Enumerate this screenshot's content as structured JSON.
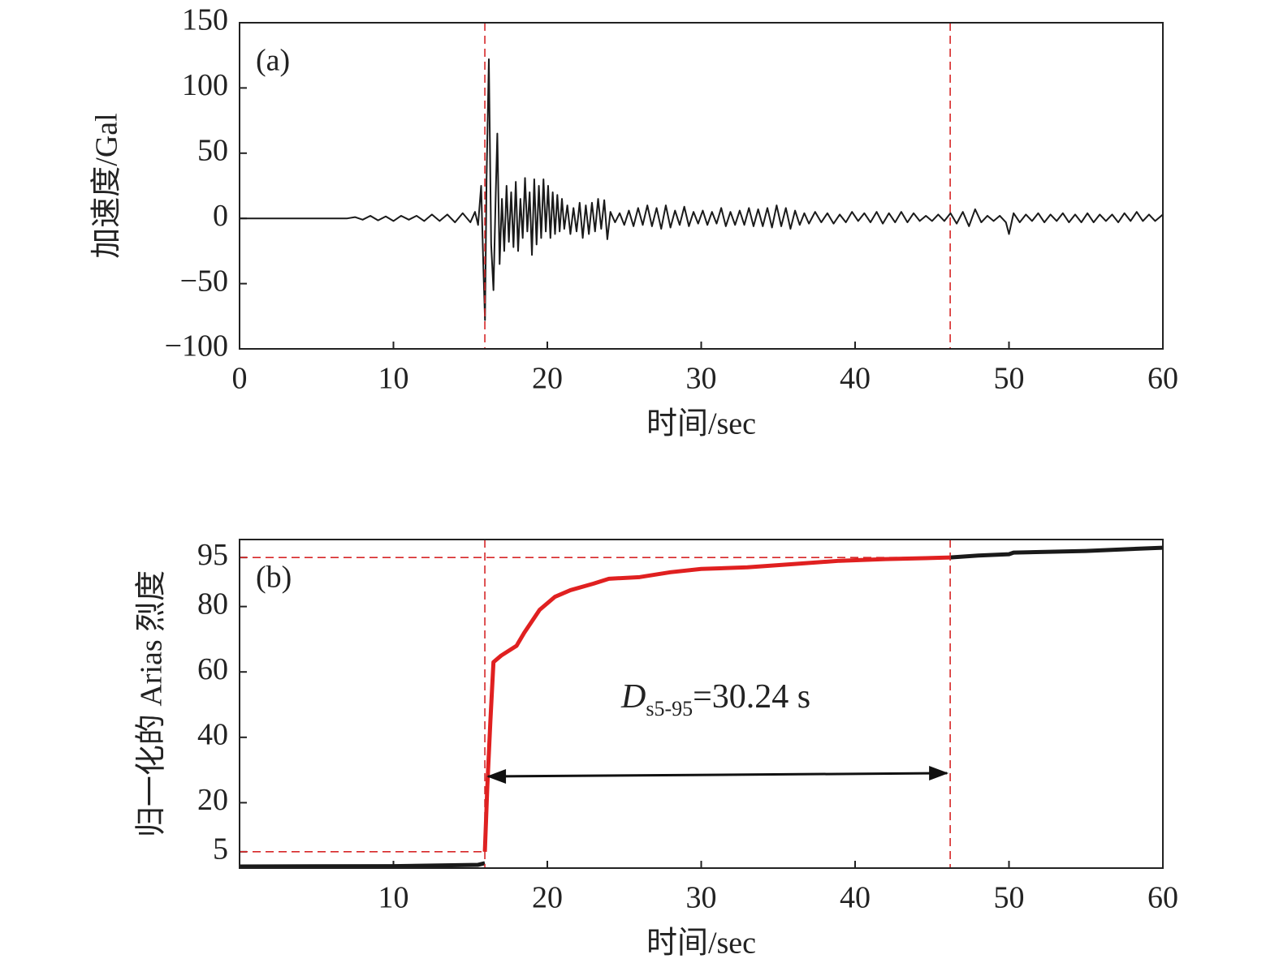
{
  "chart_data": [
    {
      "type": "line",
      "panel_label": "(a)",
      "xlabel": "时间/sec",
      "ylabel": "加速度/Gal",
      "xlim": [
        0,
        60
      ],
      "xticks": [
        0,
        10,
        20,
        30,
        40,
        50,
        60
      ],
      "ylim": [
        -100,
        150
      ],
      "yticks": [
        {
          "value": -100,
          "label": "−100"
        },
        {
          "value": -50,
          "label": "−50"
        },
        0,
        50,
        100,
        150
      ],
      "color": "#1a1a1a",
      "vline_color": "#d62728",
      "vlines": [
        15.94,
        46.18
      ],
      "x": [
        0,
        7,
        7.5,
        8,
        8.5,
        9,
        9.5,
        10,
        10.5,
        11,
        11.5,
        12,
        12.5,
        13,
        13.5,
        14,
        14.5,
        15,
        15.3,
        15.5,
        15.7,
        15.85,
        15.95,
        16.05,
        16.2,
        16.35,
        16.5,
        16.65,
        16.75,
        16.9,
        17.05,
        17.2,
        17.35,
        17.5,
        17.65,
        17.8,
        17.95,
        18.1,
        18.25,
        18.4,
        18.55,
        18.7,
        18.85,
        19.0,
        19.15,
        19.3,
        19.45,
        19.6,
        19.75,
        19.9,
        20.05,
        20.2,
        20.35,
        20.5,
        20.65,
        20.8,
        20.95,
        21.1,
        21.3,
        21.5,
        21.7,
        21.9,
        22.1,
        22.3,
        22.5,
        22.7,
        22.9,
        23.1,
        23.3,
        23.5,
        23.7,
        23.9,
        24.1,
        24.4,
        24.7,
        25.0,
        25.3,
        25.6,
        25.9,
        26.2,
        26.5,
        26.8,
        27.1,
        27.4,
        27.7,
        28.0,
        28.3,
        28.6,
        28.9,
        29.2,
        29.5,
        29.8,
        30.1,
        30.4,
        30.7,
        31.0,
        31.3,
        31.6,
        31.9,
        32.2,
        32.5,
        32.8,
        33.1,
        33.4,
        33.7,
        34.0,
        34.3,
        34.6,
        34.9,
        35.2,
        35.5,
        35.8,
        36.1,
        36.4,
        36.7,
        37.0,
        37.4,
        37.8,
        38.2,
        38.6,
        39.0,
        39.4,
        39.8,
        40.2,
        40.6,
        41.0,
        41.4,
        41.8,
        42.2,
        42.6,
        43.0,
        43.4,
        43.8,
        44.2,
        44.6,
        45.0,
        45.4,
        45.8,
        46.2,
        46.6,
        47.0,
        47.4,
        47.8,
        48.2,
        48.6,
        49.0,
        49.4,
        49.8,
        50.0,
        50.3,
        50.7,
        51.1,
        51.5,
        51.9,
        52.3,
        52.7,
        53.1,
        53.5,
        53.9,
        54.3,
        54.7,
        55.1,
        55.5,
        55.9,
        56.3,
        56.7,
        57.1,
        57.5,
        57.9,
        58.3,
        58.7,
        59.1,
        59.5,
        60.0
      ],
      "values": [
        0,
        0,
        1,
        -1,
        2,
        -1.5,
        1.5,
        -2,
        2,
        -1,
        2,
        -2,
        3,
        -2,
        3,
        -3,
        4,
        -3,
        5,
        -5,
        25,
        -40,
        -78,
        30,
        122,
        -20,
        -55,
        20,
        65,
        -35,
        15,
        -25,
        25,
        -18,
        20,
        -22,
        28,
        -25,
        15,
        -15,
        31,
        -10,
        20,
        -28,
        30,
        -20,
        25,
        -15,
        30,
        -10,
        25,
        -15,
        20,
        -12,
        18,
        -10,
        15,
        -8,
        10,
        -12,
        8,
        -10,
        12,
        -15,
        10,
        -12,
        12,
        -10,
        15,
        -8,
        14,
        -16,
        5,
        -3,
        4,
        -5,
        6,
        -6,
        8,
        -5,
        10,
        -6,
        8,
        -8,
        10,
        -7,
        6,
        -5,
        9,
        -6,
        5,
        -4,
        6,
        -5,
        5,
        -4,
        8,
        -6,
        5,
        -5,
        6,
        -5,
        8,
        -6,
        7,
        -6,
        8,
        -7,
        10,
        -6,
        8,
        -8,
        6,
        -5,
        4,
        -4,
        5,
        -3,
        4,
        -4,
        3,
        -3,
        5,
        -2,
        4,
        -3,
        5,
        -4,
        4,
        -3,
        5,
        -3,
        4,
        -2,
        2,
        -2,
        3,
        -2,
        4,
        -4,
        5,
        -6,
        7,
        -3,
        2,
        -2,
        2,
        -3,
        -12,
        4,
        -3,
        3,
        -2,
        4,
        -3,
        3,
        -2,
        4,
        -3,
        3,
        -3,
        4,
        -3,
        3,
        -2,
        3,
        -3,
        4,
        -2,
        5,
        -2,
        3,
        -2,
        3
      ]
    },
    {
      "type": "line",
      "panel_label": "(b)",
      "xlabel": "时间/sec",
      "ylabel": "归一化的 Arias 烈度",
      "xlim": [
        0,
        60
      ],
      "xticks": [
        10,
        20,
        30,
        40,
        50,
        60
      ],
      "ylim": [
        0,
        100.5
      ],
      "yticks": [
        5,
        20,
        40,
        60,
        80,
        95
      ],
      "vline_color": "#d62728",
      "vlines": [
        15.94,
        46.18
      ],
      "hlines": [
        5,
        95
      ],
      "annotation": {
        "text": "D",
        "sub": "s5-95",
        "rest": "=30.24 s"
      },
      "series": [
        {
          "color": "#1a1a1a",
          "x": [
            0,
            10,
            15.5,
            15.94
          ],
          "values": [
            0.5,
            0.6,
            1,
            1.5
          ]
        },
        {
          "color": "#e02020",
          "x": [
            15.94,
            16.1,
            16.3,
            16.5,
            17,
            18,
            18.5,
            19.5,
            20.5,
            21.5,
            23,
            24,
            26,
            28,
            30,
            33,
            36,
            39,
            42,
            46.18
          ],
          "values": [
            5,
            25,
            45,
            63,
            65,
            68,
            72,
            79,
            83,
            85,
            87,
            88.5,
            89,
            90.5,
            91.5,
            92,
            93,
            94,
            94.5,
            95
          ]
        },
        {
          "color": "#1a1a1a",
          "x": [
            46.18,
            48,
            50,
            50.3,
            55,
            60
          ],
          "values": [
            95,
            95.6,
            96,
            96.5,
            97,
            98
          ]
        }
      ]
    }
  ]
}
